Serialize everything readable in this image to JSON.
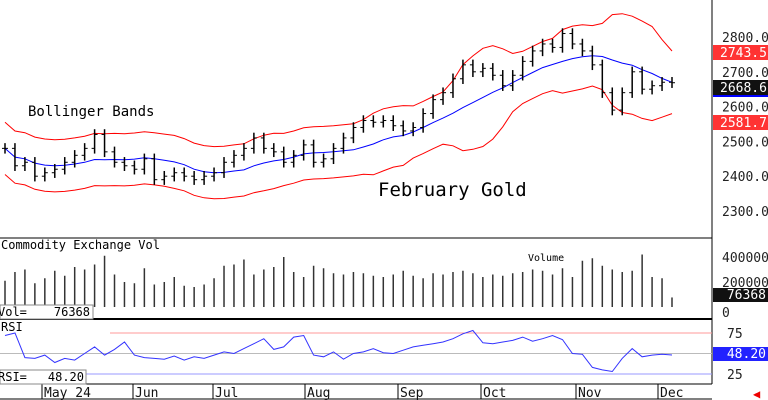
{
  "chart_data": {
    "type": "line",
    "title": "February Gold",
    "annotation": "Bollinger Bands",
    "price_axis": {
      "ticks": [
        "2300.0",
        "2400.0",
        "2500.0",
        "2600.0",
        "2700.0",
        "2800.0"
      ],
      "tick_values": [
        2300,
        2400,
        2500,
        2600,
        2700,
        2800
      ],
      "range": [
        2230,
        2900
      ]
    },
    "last_values": {
      "upper_band": "2743.5",
      "close": "2668.6",
      "lower_band": "2581.7"
    },
    "closes": [
      2480,
      2430,
      2440,
      2400,
      2410,
      2420,
      2440,
      2460,
      2480,
      2520,
      2470,
      2440,
      2430,
      2420,
      2450,
      2390,
      2400,
      2410,
      2400,
      2390,
      2400,
      2410,
      2440,
      2460,
      2480,
      2510,
      2480,
      2470,
      2440,
      2460,
      2490,
      2440,
      2450,
      2480,
      2510,
      2540,
      2560,
      2555,
      2560,
      2545,
      2530,
      2540,
      2580,
      2620,
      2640,
      2680,
      2720,
      2700,
      2710,
      2690,
      2660,
      2690,
      2730,
      2760,
      2780,
      2770,
      2810,
      2780,
      2760,
      2720,
      2640,
      2590,
      2640,
      2700,
      2650,
      2660,
      2670,
      2668.6
    ],
    "volume": {
      "label": "Commodity Exchange Vol",
      "series_label": "Volume",
      "readout_label": "Vol=",
      "readout": "76368",
      "last": "76368",
      "ticks": [
        "400000",
        "200000",
        "0"
      ],
      "tick_values": [
        400000,
        200000,
        0
      ],
      "values": [
        210000,
        280000,
        300000,
        190000,
        230000,
        290000,
        250000,
        320000,
        300000,
        340000,
        410000,
        260000,
        200000,
        190000,
        310000,
        180000,
        200000,
        240000,
        170000,
        160000,
        180000,
        230000,
        330000,
        340000,
        380000,
        260000,
        300000,
        320000,
        400000,
        280000,
        240000,
        330000,
        310000,
        270000,
        260000,
        280000,
        270000,
        250000,
        240000,
        260000,
        290000,
        250000,
        230000,
        270000,
        260000,
        280000,
        290000,
        270000,
        240000,
        260000,
        250000,
        270000,
        280000,
        300000,
        290000,
        260000,
        310000,
        240000,
        370000,
        390000,
        330000,
        300000,
        280000,
        290000,
        420000,
        240000,
        230000,
        76368
      ]
    },
    "rsi": {
      "label": "RSI",
      "readout_label": "RSI=",
      "readout": "48.20",
      "last": "48.20",
      "ticks": [
        "75",
        "25"
      ],
      "tick_values": [
        75,
        25
      ],
      "values": [
        72,
        75,
        45,
        44,
        48,
        39,
        44,
        42,
        50,
        58,
        48,
        55,
        64,
        48,
        45,
        44,
        43,
        47,
        42,
        46,
        44,
        48,
        52,
        50,
        56,
        62,
        68,
        55,
        58,
        70,
        72,
        48,
        46,
        52,
        43,
        50,
        52,
        56,
        51,
        50,
        54,
        58,
        60,
        62,
        64,
        68,
        74,
        78,
        63,
        62,
        64,
        66,
        70,
        65,
        68,
        72,
        67,
        50,
        49,
        33,
        30,
        28,
        44,
        56,
        46,
        48,
        49,
        48.2
      ]
    },
    "x_labels": [
      "May 24",
      "Jun",
      "Jul",
      "Aug",
      "Sep",
      "Oct",
      "Nov",
      "Dec"
    ]
  },
  "colors": {
    "band": "#ff0000",
    "mid": "#0000ff",
    "bar": "#000000",
    "rsi": "#3333ff"
  }
}
